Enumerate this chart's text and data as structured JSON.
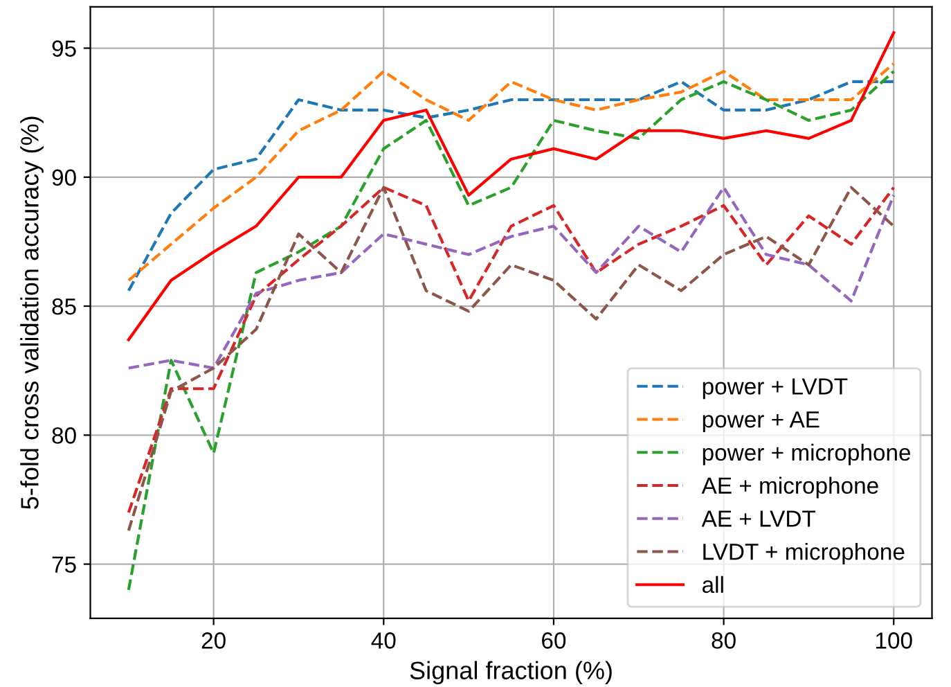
{
  "chart_data": {
    "type": "line",
    "xlabel": "Signal fraction (%)",
    "ylabel": "5-fold cross validation accuracy (%)",
    "x": [
      10,
      15,
      20,
      25,
      30,
      35,
      40,
      45,
      50,
      55,
      60,
      65,
      70,
      75,
      80,
      85,
      90,
      95,
      100
    ],
    "series": [
      {
        "name": "power + LVDT",
        "color": "#1f77b4",
        "line_style": "dashed",
        "values": [
          85.6,
          88.6,
          90.3,
          90.7,
          93.0,
          92.6,
          92.6,
          92.3,
          92.6,
          93.0,
          93.0,
          93.0,
          93.0,
          93.7,
          92.6,
          92.6,
          93.0,
          93.7,
          93.7
        ]
      },
      {
        "name": "power + AE",
        "color": "#ff7f0e",
        "line_style": "dashed",
        "values": [
          86.0,
          87.4,
          88.8,
          90.0,
          91.8,
          92.6,
          94.1,
          93.0,
          92.2,
          93.7,
          93.0,
          92.6,
          93.0,
          93.3,
          94.1,
          93.0,
          93.0,
          93.0,
          94.4
        ]
      },
      {
        "name": "power + microphone",
        "color": "#2ca02c",
        "line_style": "dashed",
        "values": [
          74.0,
          82.9,
          79.3,
          86.3,
          87.1,
          88.1,
          91.1,
          92.2,
          88.9,
          89.6,
          92.2,
          91.8,
          91.5,
          93.0,
          93.7,
          93.0,
          92.2,
          92.6,
          94.1
        ]
      },
      {
        "name": "AE + microphone",
        "color": "#d62728",
        "line_style": "dashed",
        "values": [
          77.0,
          81.8,
          81.8,
          85.4,
          86.8,
          88.1,
          89.6,
          88.9,
          85.2,
          88.1,
          88.9,
          86.3,
          87.4,
          88.1,
          88.9,
          86.6,
          88.5,
          87.4,
          89.6
        ]
      },
      {
        "name": "AE + LVDT",
        "color": "#9467bd",
        "line_style": "dashed",
        "values": [
          82.6,
          82.9,
          82.6,
          85.5,
          86.0,
          86.3,
          87.8,
          87.4,
          87.0,
          87.7,
          88.1,
          86.3,
          88.1,
          87.1,
          89.6,
          87.0,
          86.6,
          85.2,
          89.3
        ]
      },
      {
        "name": "LVDT + microphone",
        "color": "#8c564b",
        "line_style": "dashed",
        "values": [
          76.3,
          81.7,
          82.6,
          84.1,
          87.8,
          86.3,
          89.6,
          85.6,
          84.8,
          86.6,
          86.0,
          84.5,
          86.6,
          85.6,
          87.0,
          87.7,
          86.6,
          89.6,
          88.1
        ]
      },
      {
        "name": "all",
        "color": "#ff0000",
        "line_style": "solid",
        "values": [
          83.7,
          86.0,
          87.1,
          88.1,
          90.0,
          90.0,
          92.2,
          92.6,
          89.3,
          90.7,
          91.1,
          90.7,
          91.8,
          91.8,
          91.5,
          91.8,
          91.5,
          92.2,
          95.6
        ]
      }
    ],
    "xlim": [
      5.5,
      104.5
    ],
    "ylim": [
      72.9,
      96.6
    ],
    "xticks": [
      20,
      40,
      60,
      80,
      100
    ],
    "yticks": [
      75,
      80,
      85,
      90,
      95
    ],
    "grid": true,
    "legend": "bottom right",
    "marker": "none"
  }
}
